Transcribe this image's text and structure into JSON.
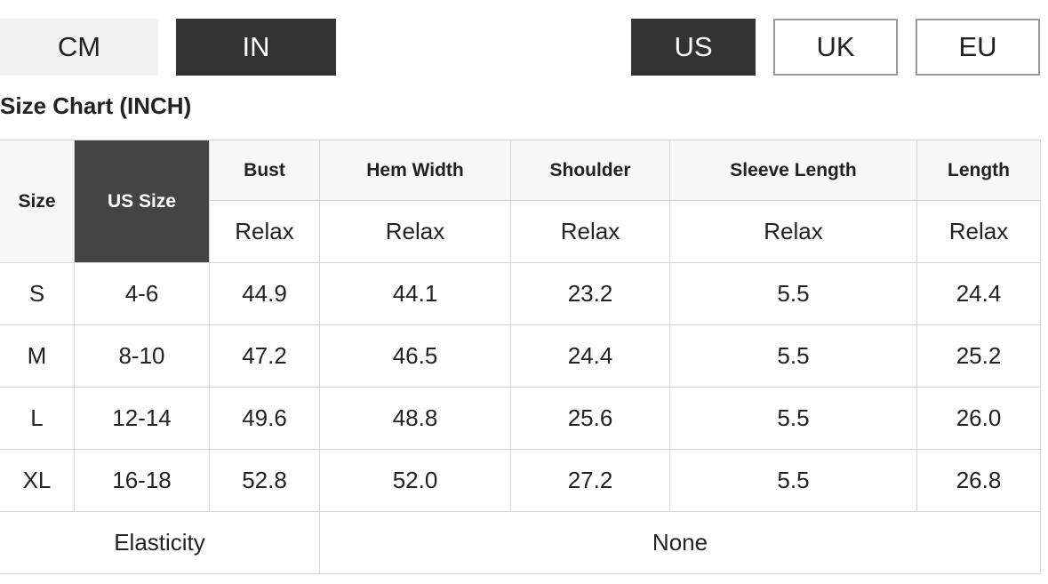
{
  "units": [
    "CM",
    "IN"
  ],
  "regions": [
    "US",
    "UK",
    "EU"
  ],
  "title": "Size Chart (INCH)",
  "table": {
    "size_header": "Size",
    "us_size_header": "US Size",
    "columns": [
      "Bust",
      "Hem Width",
      "Shoulder",
      "Sleeve Length",
      "Length"
    ],
    "fits": [
      "Relax",
      "Relax",
      "Relax",
      "Relax",
      "Relax"
    ],
    "rows": [
      [
        "S",
        "4-6",
        "44.9",
        "44.1",
        "23.2",
        "5.5",
        "24.4"
      ],
      [
        "M",
        "8-10",
        "47.2",
        "46.5",
        "24.4",
        "5.5",
        "25.2"
      ],
      [
        "L",
        "12-14",
        "49.6",
        "48.8",
        "25.6",
        "5.5",
        "26.0"
      ],
      [
        "XL",
        "16-18",
        "52.8",
        "52.0",
        "27.2",
        "5.5",
        "26.8"
      ]
    ],
    "footer": {
      "label": "Elasticity",
      "value": "None"
    }
  }
}
